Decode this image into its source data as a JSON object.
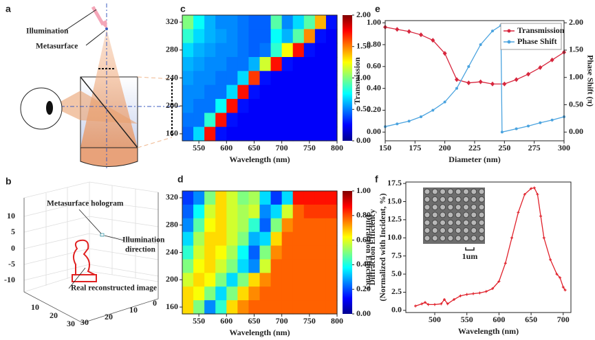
{
  "diagram_a": {
    "panel_label": "a",
    "illumination": "Illumination",
    "metasurface": "Metasurface"
  },
  "plot_b": {
    "panel_label": "b",
    "z_ticks": [
      10,
      5,
      0,
      -5,
      -10
    ],
    "x_ticks": [
      10,
      20,
      30
    ],
    "y_ticks": [
      30,
      20,
      10,
      0
    ],
    "hologram": "Metasurface hologram",
    "direction_lines": [
      "Illumination",
      "direction"
    ],
    "image": "Real reconstructed image"
  },
  "chart_data": [
    {
      "type": "heatmap",
      "panel_label": "c",
      "x_label": "Wavelength (nm)",
      "xlim": [
        520,
        800
      ],
      "ylim": [
        150,
        330
      ],
      "xticks": [
        550,
        600,
        650,
        700,
        750,
        800
      ],
      "yticks": [
        160,
        200,
        240,
        280,
        320
      ],
      "clim": [
        0,
        2
      ],
      "cticks": [
        {
          "value": 0,
          "label": "0.00"
        },
        {
          "value": 0.5,
          "label": "0.50"
        },
        {
          "value": 1,
          "label": "1.00"
        },
        {
          "value": 1.5,
          "label": "1.50"
        },
        {
          "value": 2,
          "label": "2.00"
        }
      ],
      "x": [
        530,
        550,
        570,
        590,
        610,
        630,
        650,
        670,
        690,
        710,
        730,
        750,
        770,
        790
      ],
      "y": [
        320,
        300,
        280,
        260,
        240,
        220,
        200,
        180,
        160
      ],
      "z": [
        [
          1.0,
          0.7,
          0.5,
          0.4,
          0.4,
          0.35,
          0.3,
          0.3,
          0.9,
          0.4,
          0.6,
          0.9,
          1.5,
          0.1
        ],
        [
          0.8,
          0.6,
          0.5,
          0.45,
          0.4,
          0.35,
          0.3,
          0.3,
          0.7,
          0.5,
          0.9,
          1.6,
          0.1,
          0.05
        ],
        [
          0.6,
          0.5,
          0.45,
          0.4,
          0.4,
          0.35,
          0.3,
          0.35,
          0.8,
          1.3,
          1.9,
          0.1,
          0.05,
          0.05
        ],
        [
          0.5,
          0.45,
          0.4,
          0.4,
          0.35,
          0.35,
          0.5,
          1.2,
          1.9,
          0.1,
          0.05,
          0.05,
          0.05,
          0.05
        ],
        [
          0.45,
          0.4,
          0.4,
          0.35,
          0.35,
          0.6,
          1.8,
          0.1,
          0.05,
          0.05,
          0.05,
          0.05,
          0.05,
          0.05
        ],
        [
          0.4,
          0.4,
          0.35,
          0.35,
          0.6,
          1.9,
          0.1,
          0.05,
          0.05,
          0.05,
          0.05,
          0.05,
          0.05,
          0.05
        ],
        [
          0.4,
          0.35,
          0.35,
          0.7,
          1.9,
          0.1,
          0.05,
          0.05,
          0.05,
          0.05,
          0.05,
          0.05,
          0.05,
          0.05
        ],
        [
          0.35,
          0.35,
          0.8,
          1.9,
          0.1,
          0.05,
          0.05,
          0.05,
          0.05,
          0.05,
          0.05,
          0.05,
          0.05,
          0.05
        ],
        [
          0.3,
          0.6,
          1.9,
          0.1,
          0.05,
          0.05,
          0.05,
          0.05,
          0.05,
          0.05,
          0.05,
          0.05,
          0.05,
          0.05
        ]
      ]
    },
    {
      "type": "heatmap",
      "panel_label": "d",
      "x_label": "Wavelength (nm)",
      "colorbar_label": "Diffraction Efficiency",
      "xlim": [
        520,
        800
      ],
      "ylim": [
        150,
        330
      ],
      "xticks": [
        550,
        600,
        650,
        700,
        750,
        800
      ],
      "yticks": [
        160,
        200,
        240,
        280,
        320
      ],
      "clim": [
        0,
        1
      ],
      "cticks": [
        {
          "value": 0,
          "label": "0.00"
        },
        {
          "value": 0.2,
          "label": "0.20"
        },
        {
          "value": 0.4,
          "label": "0.40"
        },
        {
          "value": 0.6,
          "label": "0.60"
        },
        {
          "value": 0.8,
          "label": "0.80"
        },
        {
          "value": 1,
          "label": "1.00"
        }
      ],
      "x": [
        530,
        550,
        570,
        590,
        610,
        630,
        650,
        670,
        690,
        710,
        730,
        750,
        770,
        790
      ],
      "y": [
        320,
        300,
        280,
        260,
        240,
        220,
        200,
        180,
        160
      ],
      "z": [
        [
          0.1,
          0.2,
          0.5,
          0.7,
          0.6,
          0.5,
          0.55,
          0.3,
          0.1,
          0.3,
          0.95,
          0.95,
          0.95,
          0.95
        ],
        [
          0.15,
          0.35,
          0.6,
          0.7,
          0.6,
          0.55,
          0.6,
          0.2,
          0.3,
          0.6,
          0.85,
          0.9,
          0.9,
          0.9
        ],
        [
          0.2,
          0.45,
          0.65,
          0.7,
          0.6,
          0.55,
          0.4,
          0.15,
          0.5,
          0.8,
          0.85,
          0.85,
          0.85,
          0.85
        ],
        [
          0.3,
          0.55,
          0.7,
          0.7,
          0.6,
          0.5,
          0.25,
          0.3,
          0.7,
          0.85,
          0.85,
          0.85,
          0.85,
          0.85
        ],
        [
          0.4,
          0.6,
          0.7,
          0.65,
          0.55,
          0.35,
          0.15,
          0.5,
          0.8,
          0.85,
          0.85,
          0.85,
          0.85,
          0.85
        ],
        [
          0.5,
          0.65,
          0.7,
          0.6,
          0.5,
          0.3,
          0.2,
          0.6,
          0.85,
          0.85,
          0.85,
          0.85,
          0.85,
          0.85
        ],
        [
          0.6,
          0.7,
          0.65,
          0.5,
          0.3,
          0.5,
          0.7,
          0.8,
          0.85,
          0.85,
          0.85,
          0.85,
          0.85,
          0.85
        ],
        [
          0.7,
          0.65,
          0.5,
          0.3,
          0.5,
          0.7,
          0.8,
          0.85,
          0.85,
          0.85,
          0.85,
          0.85,
          0.85,
          0.85
        ],
        [
          0.7,
          0.5,
          0.2,
          0.4,
          0.7,
          0.8,
          0.85,
          0.85,
          0.85,
          0.85,
          0.85,
          0.85,
          0.85,
          0.85
        ]
      ]
    },
    {
      "type": "line",
      "panel_label": "e",
      "x_label": "Diameter (nm)",
      "y_label": "Transmission",
      "y2_label": "Phase Shift (π)",
      "xlim": [
        150,
        300
      ],
      "ylim": [
        -0.08,
        1.02
      ],
      "y2lim": [
        -0.16,
        2.04
      ],
      "xticks": [
        150,
        175,
        200,
        225,
        250,
        275,
        300
      ],
      "yticks": [
        {
          "value": 0,
          "label": "0.00"
        },
        {
          "value": 0.2,
          "label": "0.20"
        },
        {
          "value": 0.4,
          "label": "0.40"
        },
        {
          "value": 0.6,
          "label": "0.60"
        },
        {
          "value": 0.8,
          "label": "0.80"
        },
        {
          "value": 1,
          "label": "1.00"
        }
      ],
      "y2ticks": [
        {
          "value": 0,
          "label": "0.00"
        },
        {
          "value": 0.5,
          "label": "0.50"
        },
        {
          "value": 1,
          "label": "1.00"
        },
        {
          "value": 1.5,
          "label": "1.50"
        },
        {
          "value": 2,
          "label": "2.00"
        }
      ],
      "legend": "upper right",
      "series": [
        {
          "name": "Transmission",
          "color": "#d7263d",
          "marker": "diamond",
          "x": [
            150,
            160,
            170,
            180,
            190,
            200,
            210,
            220,
            230,
            240,
            250,
            260,
            270,
            280,
            290,
            300
          ],
          "values": [
            0.96,
            0.94,
            0.92,
            0.89,
            0.84,
            0.72,
            0.48,
            0.45,
            0.46,
            0.44,
            0.44,
            0.48,
            0.53,
            0.59,
            0.66,
            0.73
          ]
        },
        {
          "name": "Phase Shift",
          "color": "#4aa3df",
          "marker": "circle",
          "axis": "y2",
          "x": [
            150,
            160,
            170,
            180,
            190,
            200,
            210,
            220,
            230,
            240,
            247,
            248,
            260,
            270,
            280,
            290,
            300
          ],
          "values": [
            0.1,
            0.15,
            0.2,
            0.28,
            0.4,
            0.55,
            0.8,
            1.2,
            1.6,
            1.85,
            1.95,
            0.0,
            0.06,
            0.11,
            0.17,
            0.22,
            0.28
          ]
        }
      ]
    },
    {
      "type": "line",
      "panel_label": "f",
      "x_label": "Wavelength (nm)",
      "y_label_lines": [
        "Diffraction Efficiency",
        "(Normalized with Incident, %)"
      ],
      "scale_label": "1um",
      "xlim": [
        455,
        712
      ],
      "ylim": [
        -0.3,
        17.7
      ],
      "xticks": [
        500,
        550,
        600,
        650,
        700
      ],
      "yticks": [
        {
          "value": 0,
          "label": "0.0"
        },
        {
          "value": 2.5,
          "label": "2.5"
        },
        {
          "value": 5,
          "label": "5.0"
        },
        {
          "value": 7.5,
          "label": "7.5"
        },
        {
          "value": 10,
          "label": "10.0"
        },
        {
          "value": 12.5,
          "label": "12.5"
        },
        {
          "value": 15,
          "label": "15.0"
        },
        {
          "value": 17.5,
          "label": "17.5"
        }
      ],
      "x": [
        470,
        480,
        485,
        490,
        500,
        510,
        515,
        520,
        530,
        540,
        550,
        560,
        570,
        580,
        590,
        600,
        610,
        620,
        630,
        640,
        650,
        655,
        660,
        665,
        670,
        680,
        690,
        695,
        700,
        703
      ],
      "series": [
        {
          "color": "#e0202a",
          "marker": "plus",
          "values": [
            0.6,
            0.9,
            1.1,
            0.8,
            0.8,
            0.9,
            1.5,
            0.9,
            1.5,
            2.0,
            2.2,
            2.3,
            2.4,
            2.6,
            3.0,
            4.0,
            6.5,
            10,
            13.5,
            16,
            16.8,
            16.9,
            16,
            13,
            10,
            7,
            5,
            4.5,
            3.2,
            2.8
          ]
        }
      ]
    }
  ]
}
